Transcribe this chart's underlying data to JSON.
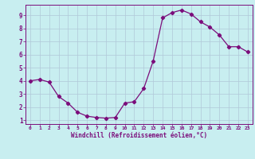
{
  "x": [
    0,
    1,
    2,
    3,
    4,
    5,
    6,
    7,
    8,
    9,
    10,
    11,
    12,
    13,
    14,
    15,
    16,
    17,
    18,
    19,
    20,
    21,
    22,
    23
  ],
  "y": [
    4.0,
    4.1,
    3.9,
    2.8,
    2.3,
    1.6,
    1.3,
    1.2,
    1.15,
    1.2,
    2.3,
    2.4,
    3.4,
    5.5,
    8.8,
    9.2,
    9.4,
    9.1,
    8.5,
    8.1,
    7.5,
    6.6,
    6.6,
    6.2
  ],
  "line_color": "#7b0d7b",
  "marker": "D",
  "marker_size": 2.2,
  "bg_color": "#c8eef0",
  "grid_color": "#b0c8d8",
  "xlabel": "Windchill (Refroidissement éolien,°C)",
  "xlabel_color": "#7b0d7b",
  "tick_color": "#7b0d7b",
  "ylim": [
    0.7,
    9.8
  ],
  "xlim": [
    -0.5,
    23.5
  ],
  "yticks": [
    1,
    2,
    3,
    4,
    5,
    6,
    7,
    8,
    9
  ],
  "xticks": [
    0,
    1,
    2,
    3,
    4,
    5,
    6,
    7,
    8,
    9,
    10,
    11,
    12,
    13,
    14,
    15,
    16,
    17,
    18,
    19,
    20,
    21,
    22,
    23
  ]
}
